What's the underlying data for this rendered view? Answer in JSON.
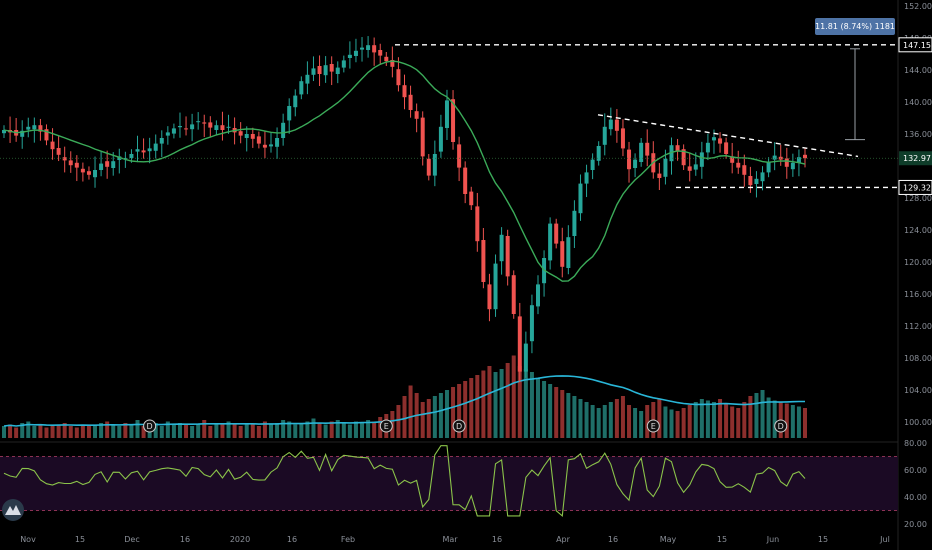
{
  "chart_data": [
    {
      "type": "candlestick",
      "title": "",
      "price_axis": {
        "ticks": [
          "152.00",
          "148.00",
          "144.00",
          "140.00",
          "136.00",
          "128.00",
          "124.00",
          "120.00",
          "116.00",
          "112.00",
          "108.00",
          "104.00",
          "100.00"
        ],
        "ylim": [
          98,
          152
        ]
      },
      "time_axis": {
        "ticks": [
          "Nov",
          "15",
          "Dec",
          "16",
          "2020",
          "16",
          "Feb",
          "Mar",
          "16",
          "Apr",
          "16",
          "May",
          "15",
          "Jun",
          "15",
          "Jul"
        ]
      },
      "price_labels": [
        {
          "value": "147.15",
          "style": "resistance"
        },
        {
          "value": "132.97",
          "style": "last"
        },
        {
          "value": "129.32",
          "style": "support"
        }
      ],
      "measure_label": "11.81 (8.74%) 1181",
      "series": [
        {
          "kind": "moving_average",
          "color": "#3bab59"
        },
        {
          "kind": "volume_average",
          "color": "#29b6d8"
        }
      ],
      "event_markers": [
        "D",
        "E",
        "D",
        "E",
        "D"
      ],
      "ohlc_closes": [
        136.5,
        136.2,
        135.8,
        136.4,
        136.9,
        137.1,
        136.3,
        135.2,
        134.1,
        133.4,
        132.7,
        132.1,
        131.8,
        131.2,
        130.9,
        131.5,
        132.3,
        131.9,
        132.6,
        133.2,
        133.0,
        133.5,
        134.1,
        133.7,
        134.2,
        134.8,
        135.5,
        136.2,
        136.7,
        137.0,
        136.6,
        137.2,
        137.6,
        137.3,
        136.8,
        137.1,
        136.5,
        136.9,
        136.2,
        135.8,
        136.0,
        135.4,
        134.8,
        134.3,
        134.7,
        135.5,
        137.4,
        139.5,
        140.8,
        142.6,
        143.4,
        144.2,
        143.5,
        144.6,
        143.8,
        144.3,
        145.2,
        145.9,
        146.4,
        146.8,
        147.1,
        146.2,
        145.8,
        145.1,
        144.4,
        142.1,
        140.6,
        139.0,
        137.9,
        133.2,
        130.8,
        133.5,
        136.9,
        140.2,
        135.0,
        131.8,
        128.5,
        127.1,
        122.6,
        117.5,
        114.1,
        119.8,
        123.4,
        118.2,
        113.5,
        106.3,
        109.8,
        114.6,
        117.2,
        120.5,
        124.8,
        122.3,
        119.4,
        123.1,
        126.4,
        129.8,
        131.2,
        132.8,
        134.5,
        136.9,
        137.8,
        136.4,
        134.2,
        131.6,
        132.8,
        134.9,
        133.3,
        131.2,
        130.5,
        132.9,
        134.6,
        133.8,
        132.1,
        131.4,
        132.2,
        133.7,
        134.9,
        135.6,
        134.8,
        133.5,
        132.4,
        131.8,
        130.9,
        129.6,
        130.4,
        131.2,
        132.5,
        133.3,
        132.8,
        131.9,
        132.4,
        133.1,
        132.97
      ],
      "volume_bars": [
        8,
        9,
        7,
        10,
        11,
        8,
        9,
        7,
        8,
        9,
        10,
        8,
        7,
        9,
        8,
        9,
        10,
        11,
        9,
        8,
        10,
        9,
        12,
        8,
        9,
        10,
        8,
        11,
        9,
        10,
        9,
        8,
        9,
        12,
        8,
        9,
        10,
        11,
        9,
        8,
        10,
        9,
        8,
        11,
        9,
        10,
        12,
        11,
        9,
        10,
        11,
        13,
        10,
        9,
        11,
        12,
        10,
        9,
        11,
        10,
        12,
        11,
        14,
        16,
        18,
        22,
        28,
        35,
        30,
        24,
        26,
        28,
        30,
        32,
        34,
        36,
        38,
        40,
        42,
        45,
        48,
        44,
        46,
        50,
        55,
        48,
        46,
        44,
        40,
        38,
        36,
        34,
        32,
        30,
        28,
        26,
        24,
        22,
        20,
        22,
        24,
        26,
        28,
        22,
        20,
        18,
        22,
        24,
        26,
        21,
        19,
        18,
        20,
        22,
        24,
        26,
        25,
        24,
        26,
        23,
        21,
        20,
        24,
        28,
        30,
        32,
        27,
        25,
        24,
        23,
        22,
        21,
        20
      ],
      "rsi": {
        "levels": [
          "80.00",
          "60.00",
          "40.00",
          "20.00"
        ],
        "bands": [
          70,
          30
        ],
        "ylim": [
          20,
          80
        ]
      }
    }
  ],
  "colors": {
    "up": "#26a69a",
    "down": "#ef5350",
    "ma": "#3bab59",
    "vol_ma": "#29b6d8",
    "rsi_line": "#8bc34a",
    "rsi_band": "#1b0a24",
    "rsi_dash": "#b7416b",
    "axis_text": "#8a8f98",
    "measure_bg": "#4e73a6"
  }
}
